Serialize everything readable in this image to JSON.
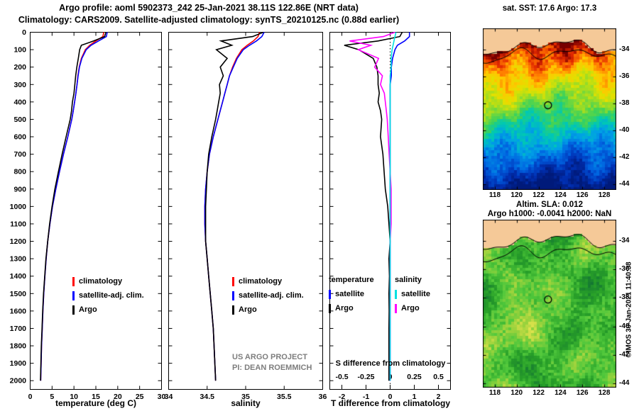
{
  "header": {
    "title_line1": "Argo profile: aoml 5902373_242 25-Jan-2021 38.11S 122.86E (NRT data)",
    "title_line2": "Climatology: CARS2009. Satellite-adjusted climatology: synTS_20210125.nc (0.88d earlier)"
  },
  "annotations": {
    "project_line1": "US ARGO PROJECT",
    "project_line2": "PI: DEAN ROEMMICH",
    "watermark": "©IMOS 30-Jan-2021 11:40:38"
  },
  "legends": {
    "profile": [
      {
        "label": "climatology",
        "color": "#ff0000"
      },
      {
        "label": "satellite-adj. clim.",
        "color": "#0000ff"
      },
      {
        "label": "Argo",
        "color": "#000000"
      }
    ],
    "difference": {
      "temperature_header": "temperature",
      "salinity_header": "salinity",
      "temperature_items": [
        {
          "label": "satellite",
          "color": "#0000ff"
        },
        {
          "label": "Argo",
          "color": "#000000"
        }
      ],
      "salinity_items": [
        {
          "label": "satellite",
          "color": "#00e0e0"
        },
        {
          "label": "Argo",
          "color": "#ff00ff"
        }
      ]
    }
  },
  "chart_data": [
    {
      "type": "line",
      "xlabel": "temperature (deg C)",
      "xlim": [
        0,
        30
      ],
      "xticks": [
        0,
        5,
        10,
        15,
        20,
        25,
        30
      ],
      "ylim": [
        0,
        2050
      ],
      "yticks": [
        0,
        100,
        200,
        300,
        400,
        500,
        600,
        700,
        800,
        900,
        1000,
        1100,
        1200,
        1300,
        1400,
        1500,
        1600,
        1700,
        1800,
        1900,
        2000
      ],
      "show_ytick_labels": true,
      "depth": [
        0,
        25,
        50,
        75,
        100,
        150,
        200,
        250,
        300,
        350,
        400,
        450,
        500,
        600,
        700,
        800,
        900,
        1000,
        1100,
        1200,
        1300,
        1400,
        1500,
        1600,
        1700,
        1800,
        1900,
        2000
      ],
      "series": [
        {
          "name": "climatology",
          "color": "#ff0000",
          "values": [
            16.8,
            16.6,
            15.0,
            13.6,
            12.6,
            11.7,
            11.2,
            10.9,
            10.7,
            10.45,
            10.15,
            9.85,
            9.5,
            8.6,
            7.6,
            6.7,
            5.85,
            5.1,
            4.5,
            4.0,
            3.65,
            3.35,
            3.1,
            2.9,
            2.75,
            2.6,
            2.5,
            2.4
          ]
        },
        {
          "name": "satellite-adj. clim.",
          "color": "#0000ff",
          "values": [
            17.6,
            17.4,
            15.6,
            13.9,
            12.8,
            11.8,
            11.25,
            10.95,
            10.7,
            10.45,
            10.15,
            9.85,
            9.5,
            8.6,
            7.6,
            6.7,
            5.85,
            5.1,
            4.5,
            4.0,
            3.65,
            3.35,
            3.1,
            2.9,
            2.75,
            2.6,
            2.5,
            2.4
          ]
        },
        {
          "name": "Argo",
          "color": "#000000",
          "values": [
            17.3,
            17.0,
            14.5,
            11.7,
            11.3,
            11.0,
            10.65,
            10.4,
            10.2,
            10.0,
            9.65,
            9.45,
            9.15,
            8.2,
            7.3,
            6.45,
            5.65,
            5.0,
            4.45,
            4.0,
            3.6,
            3.32,
            3.05,
            2.86,
            2.7,
            2.55,
            2.45,
            2.35
          ]
        }
      ]
    },
    {
      "type": "line",
      "xlabel": "salinity",
      "xlim": [
        34,
        36
      ],
      "xticks": [
        34,
        34.5,
        35,
        35.5,
        36
      ],
      "ylim": [
        0,
        2050
      ],
      "yticks": [
        0,
        100,
        200,
        300,
        400,
        500,
        600,
        700,
        800,
        900,
        1000,
        1100,
        1200,
        1300,
        1400,
        1500,
        1600,
        1700,
        1800,
        1900,
        2000
      ],
      "show_ytick_labels": false,
      "depth": [
        0,
        25,
        50,
        75,
        100,
        150,
        200,
        250,
        300,
        350,
        400,
        450,
        500,
        600,
        700,
        800,
        900,
        1000,
        1100,
        1200,
        1300,
        1400,
        1500,
        1600,
        1700,
        1800,
        1900,
        2000
      ],
      "series": [
        {
          "name": "climatology",
          "color": "#ff0000",
          "values": [
            35.18,
            35.16,
            35.1,
            35.02,
            34.95,
            34.88,
            34.83,
            34.79,
            34.76,
            34.73,
            34.7,
            34.67,
            34.64,
            34.58,
            34.53,
            34.5,
            34.48,
            34.47,
            34.47,
            34.48,
            34.5,
            34.52,
            34.54,
            34.56,
            34.58,
            34.59,
            34.6,
            34.61
          ]
        },
        {
          "name": "satellite-adj. clim.",
          "color": "#0000ff",
          "values": [
            35.24,
            35.21,
            35.14,
            35.05,
            34.97,
            34.89,
            34.84,
            34.79,
            34.76,
            34.73,
            34.7,
            34.67,
            34.64,
            34.58,
            34.53,
            34.5,
            34.48,
            34.47,
            34.47,
            34.48,
            34.5,
            34.52,
            34.54,
            34.56,
            34.58,
            34.59,
            34.6,
            34.61
          ]
        },
        {
          "name": "Argo",
          "color": "#000000",
          "values": [
            35.23,
            35.09,
            34.68,
            34.82,
            34.62,
            34.76,
            34.67,
            34.71,
            34.66,
            34.67,
            34.65,
            34.63,
            34.61,
            34.56,
            34.52,
            34.5,
            34.49,
            34.48,
            34.48,
            34.48,
            34.5,
            34.52,
            34.54,
            34.56,
            34.58,
            34.59,
            34.6,
            34.61
          ]
        }
      ]
    },
    {
      "type": "line",
      "xlabel": "T difference from climatology",
      "xlim": [
        -2.5,
        2.5
      ],
      "xticks": [
        -2,
        -1,
        0,
        1,
        2
      ],
      "ylim": [
        0,
        2050
      ],
      "yticks": [
        0,
        100,
        200,
        300,
        400,
        500,
        600,
        700,
        800,
        900,
        1000,
        1100,
        1200,
        1300,
        1400,
        1500,
        1600,
        1700,
        1800,
        1900,
        2000
      ],
      "show_ytick_labels": false,
      "zero_line": true,
      "secondary_axis": {
        "label": "S difference from climatology",
        "ticks": [
          -0.5,
          -0.25,
          0,
          0.25,
          0.5
        ],
        "scale": 4
      },
      "depth": [
        0,
        25,
        50,
        75,
        100,
        150,
        200,
        250,
        300,
        350,
        400,
        450,
        500,
        600,
        700,
        800,
        900,
        1000,
        1100,
        1200,
        1300,
        1400,
        1500,
        1600,
        1700,
        1800,
        1900,
        2000
      ],
      "series": [
        {
          "name": "satellite T",
          "color": "#0000ff",
          "axis": "T",
          "values": [
            0.8,
            0.8,
            0.6,
            0.3,
            0.2,
            0.1,
            0.05,
            0.05,
            0,
            0,
            0,
            0,
            0,
            0,
            0,
            0,
            0,
            0,
            0,
            0,
            0,
            0,
            0,
            0,
            0,
            0,
            0,
            0
          ]
        },
        {
          "name": "Argo T",
          "color": "#000000",
          "axis": "T",
          "values": [
            0.5,
            0.4,
            -0.5,
            -1.9,
            -1.3,
            -0.7,
            -0.55,
            -0.5,
            -0.5,
            -0.45,
            -0.5,
            -0.4,
            -0.35,
            -0.4,
            -0.3,
            -0.25,
            -0.2,
            -0.1,
            -0.05,
            0,
            -0.05,
            -0.03,
            -0.05,
            -0.04,
            -0.05,
            -0.05,
            -0.05,
            -0.05
          ]
        },
        {
          "name": "Argo S",
          "color": "#ff00ff",
          "axis": "S",
          "values": [
            0.05,
            -0.07,
            -0.42,
            -0.2,
            -0.33,
            -0.12,
            -0.16,
            -0.08,
            -0.1,
            -0.06,
            -0.05,
            -0.04,
            -0.03,
            -0.02,
            -0.01,
            0,
            0.01,
            0.01,
            0.01,
            0,
            0,
            0,
            0,
            0,
            0,
            0,
            0,
            0
          ]
        },
        {
          "name": "satellite S",
          "color": "#00e0e0",
          "axis": "S",
          "values": [
            0.06,
            0.05,
            0.04,
            0.03,
            0.02,
            0.01,
            0.01,
            0,
            0,
            0,
            0,
            0,
            0,
            0,
            0,
            0,
            0,
            0,
            0,
            0,
            0,
            0,
            0,
            0,
            0,
            0,
            0,
            0
          ]
        }
      ]
    }
  ],
  "maps": [
    {
      "kind": "sst",
      "title": "sat. SST: 17.6 Argo: 17.3",
      "extent": {
        "lon": [
          116.9,
          129.1
        ],
        "lat": [
          -32.4,
          -44.4
        ]
      },
      "xticks": [
        118,
        120,
        122,
        124,
        126,
        128
      ],
      "yticks": [
        -34,
        -36,
        -38,
        -40,
        -42,
        -44
      ],
      "marker": {
        "lon": 122.86,
        "lat": -38.11
      },
      "land_color": "#f5c998",
      "coast_base": 0.115,
      "contour_offset": 0.05,
      "palette": [
        {
          "v": 0.0,
          "c": "#001a7a"
        },
        {
          "v": 0.1,
          "c": "#0030b4"
        },
        {
          "v": 0.2,
          "c": "#0064e1"
        },
        {
          "v": 0.3,
          "c": "#00a0e6"
        },
        {
          "v": 0.4,
          "c": "#00c8b4"
        },
        {
          "v": 0.5,
          "c": "#3cd25a"
        },
        {
          "v": 0.6,
          "c": "#96dc28"
        },
        {
          "v": 0.7,
          "c": "#e1e100"
        },
        {
          "v": 0.78,
          "c": "#ffc800"
        },
        {
          "v": 0.86,
          "c": "#ff7800"
        },
        {
          "v": 0.93,
          "c": "#e12800"
        },
        {
          "v": 1.0,
          "c": "#780000"
        }
      ]
    },
    {
      "kind": "sla",
      "title": "Altim. SLA: 0.012",
      "subtitle": "Argo h1000: -0.0041 h2000: NaN",
      "extent": {
        "lon": [
          116.9,
          129.1
        ],
        "lat": [
          -32.5,
          -44.3
        ]
      },
      "xticks": [
        118,
        120,
        122,
        124,
        126,
        128
      ],
      "yticks": [
        -34,
        -36,
        -38,
        -40,
        -42,
        -44
      ],
      "marker": {
        "lon": 122.86,
        "lat": -38.11
      },
      "land_color": "#f5c998",
      "coast_base": 0.13,
      "contour_offset": 0.07,
      "palette": [
        {
          "v": 0.0,
          "c": "#147832"
        },
        {
          "v": 0.3,
          "c": "#28a028"
        },
        {
          "v": 0.5,
          "c": "#50c83c"
        },
        {
          "v": 0.7,
          "c": "#96d23c"
        },
        {
          "v": 0.85,
          "c": "#c8dc46"
        },
        {
          "v": 1.0,
          "c": "#e6e650"
        }
      ]
    }
  ]
}
